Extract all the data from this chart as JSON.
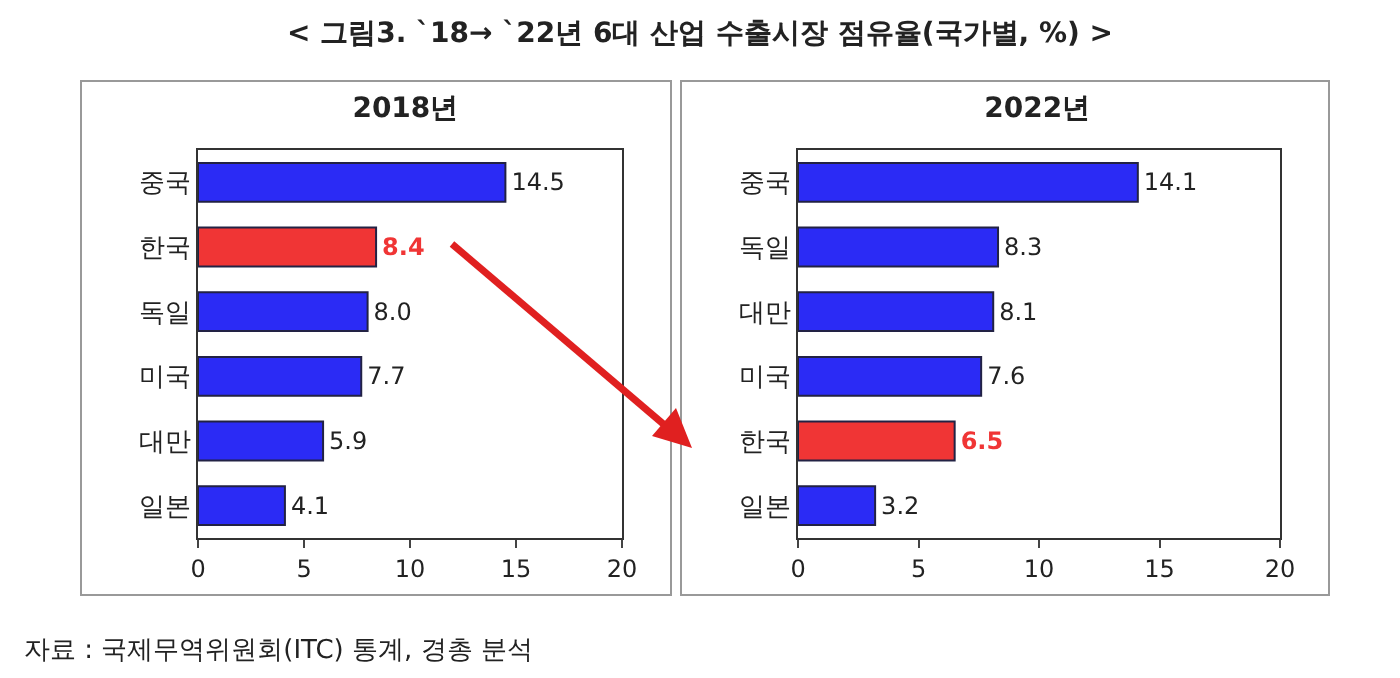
{
  "chart_data": [
    {
      "type": "bar",
      "orientation": "horizontal",
      "title": "2018년",
      "categories": [
        "중국",
        "한국",
        "독일",
        "미국",
        "대만",
        "일본"
      ],
      "values": [
        14.5,
        8.4,
        8.0,
        7.7,
        5.9,
        4.1
      ],
      "colors": [
        "#2b2bf5",
        "#f03535",
        "#2b2bf5",
        "#2b2bf5",
        "#2b2bf5",
        "#2b2bf5"
      ],
      "xlim": [
        0,
        20
      ],
      "xticks": [
        0,
        5,
        10,
        15,
        20
      ],
      "value_labels": [
        "14.5",
        "8.4",
        "8.0",
        "7.7",
        "5.9",
        "4.1"
      ],
      "grid": false,
      "annotations": [
        "< 그림3. `18→ `22년 6대 산업 수출시장 점유율(국가별, %) >"
      ]
    },
    {
      "type": "bar",
      "orientation": "horizontal",
      "title": "2022년",
      "categories": [
        "중국",
        "독일",
        "대만",
        "미국",
        "한국",
        "일본"
      ],
      "values": [
        14.1,
        8.3,
        8.1,
        7.6,
        6.5,
        3.2
      ],
      "colors": [
        "#2b2bf5",
        "#2b2bf5",
        "#2b2bf5",
        "#2b2bf5",
        "#f03535",
        "#2b2bf5"
      ],
      "xlim": [
        0,
        20
      ],
      "xticks": [
        0,
        5,
        10,
        15,
        20
      ],
      "value_labels": [
        "14.1",
        "8.3",
        "8.1",
        "7.6",
        "6.5",
        "3.2"
      ],
      "grid": false,
      "annotations": [
        "자료 : 국제무역위원회(ITC) 통계, 경총 분석"
      ]
    }
  ]
}
